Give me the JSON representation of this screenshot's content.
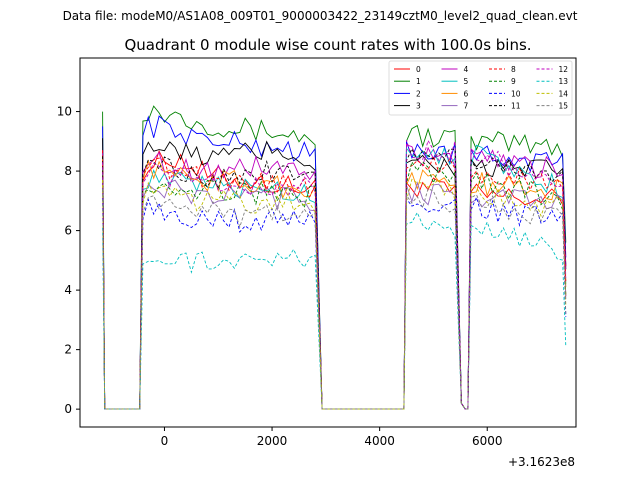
{
  "suptitle": "Data file: modeM0/AS1A08_009T01_9000003422_23149cztM0_level2_quad_clean.evt",
  "chart_data": {
    "type": "line",
    "title": "Quadrant 0 module wise count rates with 100.0s bins.",
    "xlabel": "",
    "ylabel": "",
    "x_offset_label": "+3.1623e8",
    "xlim": [
      -1570,
      7650
    ],
    "ylim": [
      -0.6,
      11.8
    ],
    "xticks": [
      0,
      2000,
      4000,
      6000
    ],
    "xtick_labels": [
      "0",
      "2000",
      "4000",
      "6000"
    ],
    "yticks": [
      0,
      2,
      4,
      6,
      8,
      10
    ],
    "ytick_labels": [
      "0",
      "2",
      "4",
      "6",
      "8",
      "10"
    ],
    "grid": false,
    "legend_location": "top-right",
    "legend_columns": 4,
    "segments": [
      {
        "start": -1150,
        "end": 2850,
        "dip": [
          -1100,
          -500
        ]
      },
      {
        "start": 4350,
        "end": 5750,
        "dip": [
          5550,
          5650
        ]
      },
      {
        "start": 5650,
        "end": 7450,
        "dip": null
      }
    ],
    "series": [
      {
        "name": "0",
        "color": "#ff0000",
        "dashed": false,
        "levels": [
          7.8,
          8.0,
          8.5,
          7.8,
          7.7,
          7.5,
          7.4,
          7.6,
          7.2,
          7.0
        ]
      },
      {
        "name": "1",
        "color": "#008000",
        "dashed": false,
        "levels": [
          9.5,
          10.1,
          9.9,
          9.6,
          9.4,
          9.3,
          9.0,
          9.3,
          9.0,
          8.8
        ]
      },
      {
        "name": "2",
        "color": "#0000ff",
        "dashed": false,
        "levels": [
          9.0,
          9.6,
          9.4,
          9.0,
          8.9,
          8.8,
          8.5,
          8.8,
          8.5,
          8.3
        ]
      },
      {
        "name": "3",
        "color": "#000000",
        "dashed": false,
        "levels": [
          8.6,
          9.0,
          8.6,
          8.5,
          8.6,
          8.7,
          8.2,
          8.4,
          8.1,
          8.0
        ]
      },
      {
        "name": "4",
        "color": "#bf00bf",
        "dashed": false,
        "levels": [
          8.2,
          8.4,
          8.2,
          8.0,
          8.1,
          8.2,
          7.8,
          8.5,
          8.4,
          8.0
        ]
      },
      {
        "name": "5",
        "color": "#00bfbf",
        "dashed": false,
        "levels": [
          7.6,
          7.8,
          7.6,
          7.5,
          7.4,
          7.4,
          7.2,
          8.7,
          8.6,
          7.4
        ]
      },
      {
        "name": "6",
        "color": "#ff8c00",
        "dashed": false,
        "levels": [
          8.0,
          8.1,
          7.9,
          7.7,
          7.6,
          7.5,
          7.4,
          7.8,
          7.6,
          7.3
        ]
      },
      {
        "name": "7",
        "color": "#9467bd",
        "dashed": false,
        "levels": [
          7.4,
          7.5,
          7.3,
          7.2,
          7.1,
          7.1,
          7.0,
          7.3,
          7.2,
          6.9
        ]
      },
      {
        "name": "8",
        "color": "#ff0000",
        "dashed": true,
        "levels": [
          8.2,
          8.3,
          8.0,
          7.8,
          7.7,
          7.6,
          7.5,
          8.2,
          8.0,
          7.5
        ]
      },
      {
        "name": "9",
        "color": "#008000",
        "dashed": true,
        "levels": [
          7.6,
          7.7,
          7.5,
          7.4,
          7.3,
          7.2,
          7.1,
          8.0,
          7.8,
          7.0
        ]
      },
      {
        "name": "10",
        "color": "#0000ff",
        "dashed": true,
        "levels": [
          6.6,
          6.8,
          6.5,
          6.4,
          6.3,
          6.4,
          6.3,
          7.0,
          6.8,
          6.3
        ]
      },
      {
        "name": "11",
        "color": "#000000",
        "dashed": true,
        "levels": [
          8.0,
          8.3,
          8.1,
          7.8,
          7.8,
          8.1,
          7.6,
          8.6,
          8.4,
          7.9
        ]
      },
      {
        "name": "12",
        "color": "#bf00bf",
        "dashed": true,
        "levels": [
          7.8,
          8.0,
          7.8,
          7.6,
          7.5,
          7.5,
          7.4,
          8.8,
          8.6,
          7.6
        ]
      },
      {
        "name": "13",
        "color": "#00bfbf",
        "dashed": true,
        "levels": [
          5.6,
          5.3,
          5.0,
          4.9,
          5.0,
          5.1,
          4.9,
          6.3,
          6.1,
          5.3
        ]
      },
      {
        "name": "14",
        "color": "#bfbf00",
        "dashed": true,
        "levels": [
          7.2,
          7.3,
          7.1,
          7.0,
          6.9,
          6.9,
          6.8,
          7.4,
          7.3,
          6.7
        ]
      },
      {
        "name": "15",
        "color": "#808080",
        "dashed": true,
        "levels": [
          6.9,
          7.0,
          6.8,
          6.6,
          6.5,
          6.5,
          6.4,
          7.1,
          6.9,
          6.4
        ]
      }
    ]
  }
}
